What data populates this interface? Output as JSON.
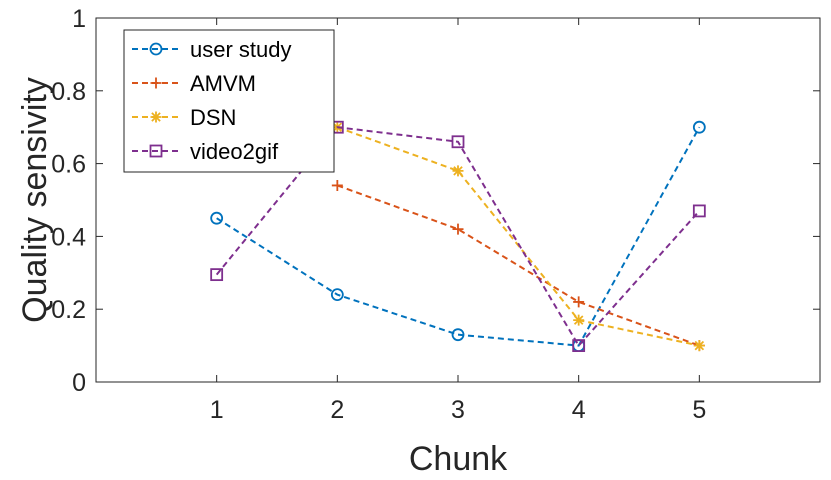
{
  "chart_data": {
    "type": "line",
    "xlabel": "Chunk",
    "ylabel": "Quality sensivity",
    "x": [
      1,
      2,
      3,
      4,
      5
    ],
    "xlim": [
      0,
      6
    ],
    "ylim": [
      0,
      1
    ],
    "xticks": [
      "1",
      "2",
      "3",
      "4",
      "5"
    ],
    "yticks": [
      "0",
      "0.2",
      "0.4",
      "0.6",
      "0.8",
      "1"
    ],
    "grid": false,
    "legend_position": "top-left",
    "series": [
      {
        "name": "user study",
        "color": "#0072BD",
        "marker": "circle",
        "values": [
          0.45,
          0.24,
          0.13,
          0.1,
          0.7
        ]
      },
      {
        "name": "AMVM",
        "color": "#D95319",
        "marker": "plus",
        "values": [
          null,
          0.54,
          0.42,
          0.22,
          0.1
        ]
      },
      {
        "name": "DSN",
        "color": "#EDB120",
        "marker": "asterisk",
        "values": [
          null,
          0.7,
          0.58,
          0.17,
          0.1
        ]
      },
      {
        "name": "video2gif",
        "color": "#7E2F8E",
        "marker": "square",
        "values": [
          0.295,
          0.7,
          0.66,
          0.1,
          0.47
        ]
      }
    ]
  }
}
